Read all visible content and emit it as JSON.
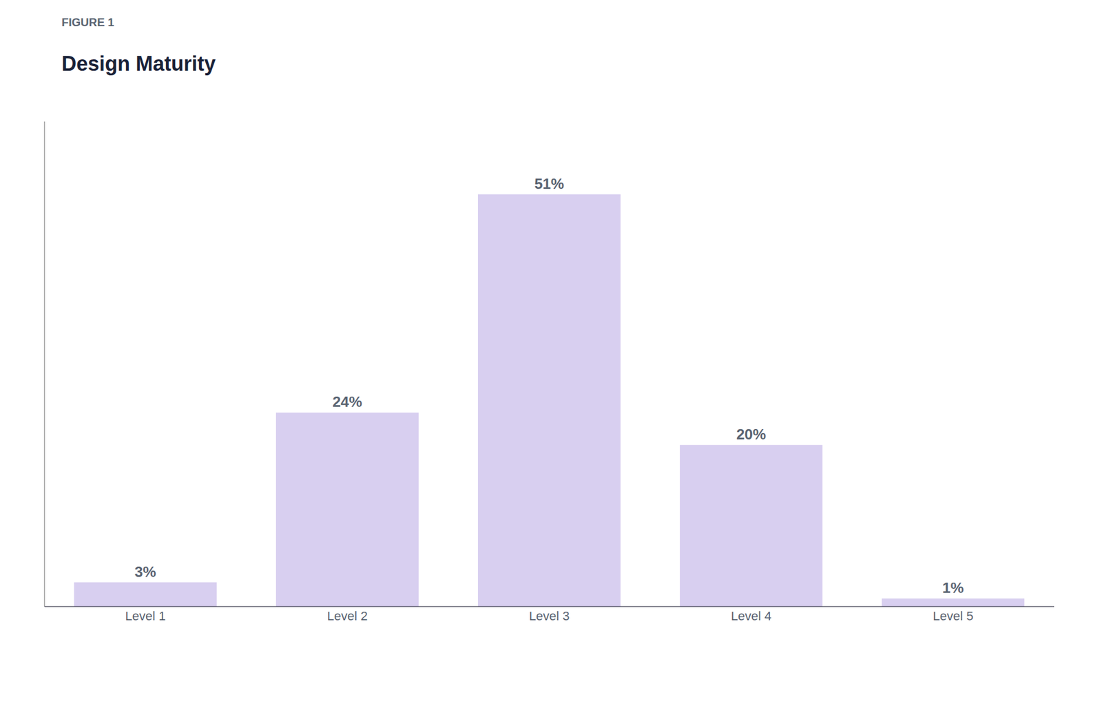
{
  "chart_data": {
    "type": "bar",
    "title": "Design Maturity",
    "subtitle": "FIGURE 1",
    "categories": [
      "Level 1",
      "Level 2",
      "Level 3",
      "Level 4",
      "Level 5"
    ],
    "values": [
      3,
      24,
      51,
      20,
      1
    ],
    "value_labels": [
      "3%",
      "24%",
      "51%",
      "20%",
      "1%"
    ],
    "data_labels": true,
    "color": "#d8cff0",
    "ylim": [
      0,
      60
    ],
    "grid": false,
    "tick_labels": "x"
  }
}
